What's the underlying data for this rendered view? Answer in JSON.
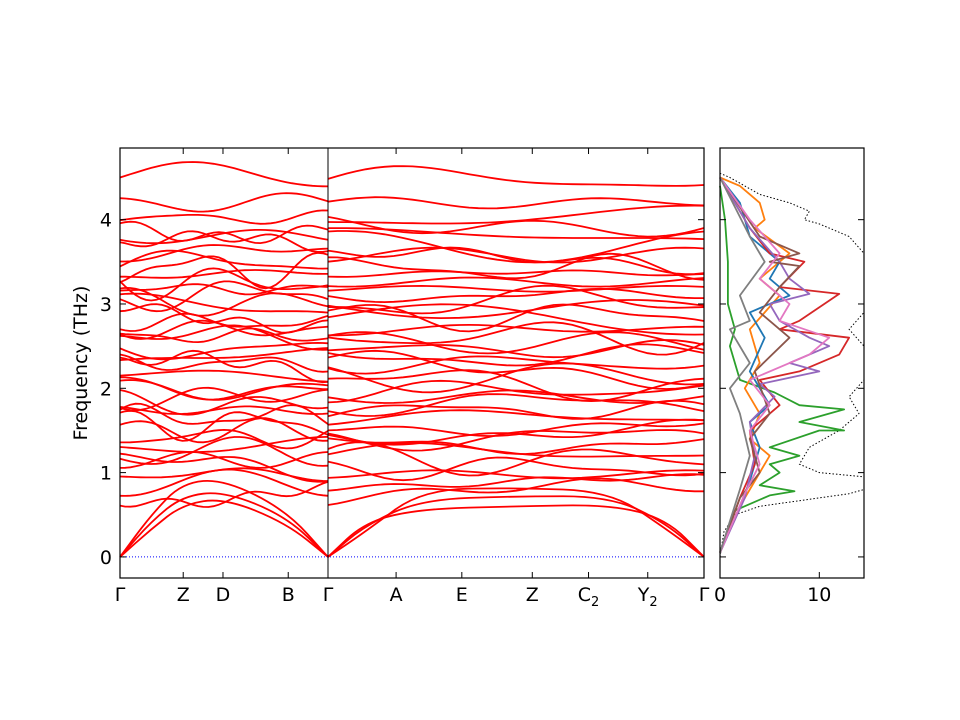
{
  "chart_data": [
    {
      "type": "line",
      "subtype": "phonon-band-structure",
      "ylabel": "Frequency (THz)",
      "ylim": [
        -0.25,
        4.85
      ],
      "yticks": [
        "0",
        "1",
        "2",
        "3",
        "4"
      ],
      "ytick_values": [
        0,
        1,
        2,
        3,
        4
      ],
      "segments": [
        {
          "ticks": [
            {
              "label": "Γ",
              "pos": 0.0
            },
            {
              "label": "Z",
              "pos": 0.3039
            },
            {
              "label": "D",
              "pos": 0.4951
            },
            {
              "label": "B",
              "pos": 0.8088
            },
            {
              "label": "Γ",
              "pos": 1.0
            }
          ]
        },
        {
          "ticks": [
            {
              "label": "Γ",
              "pos": 0.0
            },
            {
              "label": "A",
              "pos": 0.1811
            },
            {
              "label": "E",
              "pos": 0.3559
            },
            {
              "label": "Z",
              "pos": 0.5433
            },
            {
              "label": "C",
              "sub": "2",
              "pos": 0.6929
            },
            {
              "label": "Y",
              "sub": "2",
              "pos": 0.8504
            },
            {
              "label": "Γ",
              "pos": 1.0
            }
          ]
        }
      ],
      "zero_line": {
        "value": 0,
        "color": "#0000ff",
        "style": "dotted"
      },
      "band_color": "#ff0000",
      "grid": false,
      "note_values_estimated": true,
      "acoustic_branches": [
        {
          "segment": 0,
          "points": [
            [
              0,
              0
            ],
            [
              0.15,
              0.5
            ],
            [
              0.3,
              0.88
            ],
            [
              0.5,
              0.92
            ],
            [
              0.8,
              0.55
            ],
            [
              1,
              0
            ]
          ]
        },
        {
          "segment": 0,
          "points": [
            [
              0,
              0
            ],
            [
              0.15,
              0.42
            ],
            [
              0.3,
              0.72
            ],
            [
              0.5,
              0.78
            ],
            [
              0.8,
              0.48
            ],
            [
              1,
              0
            ]
          ]
        },
        {
          "segment": 0,
          "points": [
            [
              0,
              0
            ],
            [
              0.15,
              0.33
            ],
            [
              0.3,
              0.62
            ],
            [
              0.5,
              0.7
            ],
            [
              0.8,
              0.4
            ],
            [
              1,
              0
            ]
          ]
        },
        {
          "segment": 1,
          "points": [
            [
              0,
              0
            ],
            [
              0.1,
              0.42
            ],
            [
              0.25,
              0.57
            ],
            [
              0.5,
              0.6
            ],
            [
              0.75,
              0.62
            ],
            [
              0.9,
              0.45
            ],
            [
              1,
              0
            ]
          ]
        },
        {
          "segment": 1,
          "points": [
            [
              0,
              0
            ],
            [
              0.1,
              0.38
            ],
            [
              0.25,
              0.68
            ],
            [
              0.5,
              0.72
            ],
            [
              0.75,
              0.72
            ],
            [
              0.9,
              0.4
            ],
            [
              1,
              0
            ]
          ]
        },
        {
          "segment": 1,
          "points": [
            [
              0,
              0
            ],
            [
              0.1,
              0.3
            ],
            [
              0.25,
              0.8
            ],
            [
              0.5,
              0.82
            ],
            [
              0.75,
              0.78
            ],
            [
              0.9,
              0.33
            ],
            [
              1,
              0
            ]
          ]
        }
      ],
      "optical_band_levels": [
        0.75,
        0.88,
        0.98,
        1.06,
        1.15,
        1.24,
        1.33,
        1.42,
        1.5,
        1.58,
        1.66,
        1.74,
        1.82,
        1.9,
        1.98,
        2.06,
        2.14,
        2.22,
        2.3,
        2.38,
        2.46,
        2.54,
        2.62,
        2.7,
        2.78,
        2.86,
        2.94,
        3.02,
        3.1,
        3.18,
        3.26,
        3.34,
        3.42,
        3.5,
        3.58,
        3.68,
        3.8,
        3.92,
        4.02,
        4.2,
        4.48
      ]
    },
    {
      "type": "line",
      "subtype": "projected-dos",
      "xlim": [
        0,
        14.5
      ],
      "xticks": [
        "0",
        "10"
      ],
      "xtick_values": [
        0,
        10
      ],
      "ylim": [
        -0.25,
        4.85
      ],
      "orientation": "horizontal",
      "series": [
        {
          "color": "#000000",
          "style": "dotted",
          "total": true,
          "points": [
            [
              0,
              0
            ],
            [
              0.4,
              0.3
            ],
            [
              1.5,
              0.5
            ],
            [
              4,
              0.6
            ],
            [
              7,
              0.65
            ],
            [
              10,
              0.7
            ],
            [
              13,
              0.75
            ],
            [
              14.5,
              0.8
            ],
            [
              14.5,
              0.95
            ],
            [
              10,
              1.0
            ],
            [
              8,
              1.1
            ],
            [
              9,
              1.3
            ],
            [
              12,
              1.5
            ],
            [
              14,
              1.7
            ],
            [
              13,
              1.9
            ],
            [
              14.5,
              2.1
            ],
            [
              14.5,
              2.5
            ],
            [
              13,
              2.7
            ],
            [
              14.5,
              2.9
            ],
            [
              14.5,
              3.6
            ],
            [
              13,
              3.8
            ],
            [
              10,
              3.95
            ],
            [
              8.5,
              4.0
            ],
            [
              9,
              4.1
            ],
            [
              7,
              4.2
            ],
            [
              4,
              4.3
            ],
            [
              1,
              4.5
            ],
            [
              0,
              4.55
            ]
          ]
        },
        {
          "color": "#2ca02c",
          "style": "solid",
          "points": [
            [
              0,
              0.05
            ],
            [
              1.5,
              0.55
            ],
            [
              5,
              0.73
            ],
            [
              7.5,
              0.78
            ],
            [
              4,
              0.85
            ],
            [
              6,
              1.0
            ],
            [
              5,
              1.1
            ],
            [
              8,
              1.2
            ],
            [
              5,
              1.3
            ],
            [
              10,
              1.5
            ],
            [
              12.5,
              1.5
            ],
            [
              8,
              1.6
            ],
            [
              12.5,
              1.75
            ],
            [
              8,
              1.8
            ],
            [
              5.5,
              1.95
            ],
            [
              2,
              2.1
            ],
            [
              1,
              2.5
            ],
            [
              1.5,
              2.7
            ],
            [
              0.8,
              3.0
            ],
            [
              0.8,
              3.5
            ],
            [
              0.5,
              4.0
            ],
            [
              0,
              4.4
            ]
          ]
        },
        {
          "color": "#ff7f0e",
          "style": "solid",
          "points": [
            [
              0,
              0.05
            ],
            [
              2,
              0.6
            ],
            [
              3,
              0.8
            ],
            [
              5,
              1.2
            ],
            [
              3,
              1.4
            ],
            [
              4,
              1.7
            ],
            [
              2.5,
              2.0
            ],
            [
              4,
              2.3
            ],
            [
              3,
              2.7
            ],
            [
              6,
              3.1
            ],
            [
              4,
              3.3
            ],
            [
              7,
              3.6
            ],
            [
              3.5,
              3.9
            ],
            [
              4.5,
              4.0
            ],
            [
              4,
              4.2
            ],
            [
              2,
              4.4
            ],
            [
              0,
              4.5
            ]
          ]
        },
        {
          "color": "#1f77b4",
          "style": "solid",
          "points": [
            [
              0,
              0.05
            ],
            [
              2,
              0.6
            ],
            [
              3,
              0.9
            ],
            [
              4,
              1.3
            ],
            [
              3,
              1.6
            ],
            [
              5,
              1.8
            ],
            [
              3,
              2.2
            ],
            [
              4.5,
              2.6
            ],
            [
              3,
              2.9
            ],
            [
              7,
              3.1
            ],
            [
              5,
              3.3
            ],
            [
              6,
              3.5
            ],
            [
              3,
              3.8
            ],
            [
              2,
              4.2
            ],
            [
              0,
              4.5
            ]
          ]
        },
        {
          "color": "#d62728",
          "style": "solid",
          "points": [
            [
              0,
              0.05
            ],
            [
              2,
              0.7
            ],
            [
              3.5,
              1.1
            ],
            [
              3,
              1.5
            ],
            [
              6,
              1.8
            ],
            [
              4,
              2.1
            ],
            [
              8,
              2.2
            ],
            [
              12,
              2.4
            ],
            [
              13,
              2.6
            ],
            [
              6,
              2.7
            ],
            [
              8,
              2.8
            ],
            [
              12,
              3.12
            ],
            [
              6,
              3.2
            ],
            [
              8.5,
              3.5
            ],
            [
              5,
              3.6
            ],
            [
              3,
              3.9
            ],
            [
              1,
              4.3
            ],
            [
              0,
              4.5
            ]
          ]
        },
        {
          "color": "#9467bd",
          "style": "solid",
          "points": [
            [
              0,
              0.05
            ],
            [
              2.5,
              0.7
            ],
            [
              3.5,
              1.2
            ],
            [
              3,
              1.6
            ],
            [
              5.5,
              1.9
            ],
            [
              4,
              2.05
            ],
            [
              10,
              2.2
            ],
            [
              7,
              2.3
            ],
            [
              11,
              2.5
            ],
            [
              9,
              2.6
            ],
            [
              6,
              2.8
            ],
            [
              5,
              3.0
            ],
            [
              9,
              3.12
            ],
            [
              7,
              3.3
            ],
            [
              6,
              3.5
            ],
            [
              3,
              3.9
            ],
            [
              0,
              4.5
            ]
          ]
        },
        {
          "color": "#8c564b",
          "style": "solid",
          "points": [
            [
              0,
              0.05
            ],
            [
              2,
              0.7
            ],
            [
              4,
              1.0
            ],
            [
              3,
              1.4
            ],
            [
              5,
              1.7
            ],
            [
              3.5,
              2.2
            ],
            [
              7,
              2.6
            ],
            [
              4,
              2.9
            ],
            [
              6,
              3.2
            ],
            [
              8,
              3.45
            ],
            [
              5,
              3.5
            ],
            [
              8,
              3.6
            ],
            [
              4,
              3.8
            ],
            [
              0,
              4.5
            ]
          ]
        },
        {
          "color": "#e377c2",
          "style": "solid",
          "points": [
            [
              0,
              0.05
            ],
            [
              2.5,
              0.75
            ],
            [
              4,
              1.1
            ],
            [
              3,
              1.5
            ],
            [
              5,
              1.8
            ],
            [
              3,
              2.1
            ],
            [
              9,
              2.4
            ],
            [
              11,
              2.6
            ],
            [
              6,
              2.8
            ],
            [
              7,
              3.0
            ],
            [
              4,
              3.3
            ],
            [
              6,
              3.6
            ],
            [
              3,
              4.0
            ],
            [
              0,
              4.5
            ]
          ]
        },
        {
          "color": "#7f7f7f",
          "style": "solid",
          "points": [
            [
              0,
              0.05
            ],
            [
              2,
              0.8
            ],
            [
              3,
              1.2
            ],
            [
              2,
              1.7
            ],
            [
              1,
              2.0
            ],
            [
              3,
              2.3
            ],
            [
              1,
              2.7
            ],
            [
              3,
              2.8
            ],
            [
              2,
              3.1
            ],
            [
              4.5,
              3.5
            ],
            [
              3,
              3.8
            ],
            [
              0,
              4.5
            ]
          ]
        }
      ]
    }
  ]
}
